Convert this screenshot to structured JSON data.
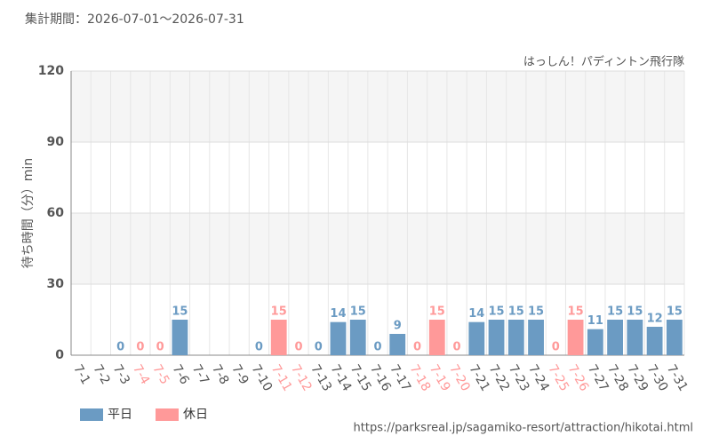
{
  "chart_data": {
    "type": "bar",
    "title": "集計期間：2026-07-01～2026-07-31",
    "subtitle": "はっしん！パディントン飛行隊",
    "y_label": "待ち時間（分）min",
    "source": "https://parksreal.jp/sagamiko-resort/attraction/hikotai.html",
    "categories": [
      "7-1",
      "7-2",
      "7-3",
      "7-4",
      "7-5",
      "7-6",
      "7-7",
      "7-8",
      "7-9",
      "7-10",
      "7-11",
      "7-12",
      "7-13",
      "7-14",
      "7-15",
      "7-16",
      "7-17",
      "7-18",
      "7-19",
      "7-20",
      "7-21",
      "7-22",
      "7-23",
      "7-24",
      "7-25",
      "7-26",
      "7-27",
      "7-28",
      "7-29",
      "7-30",
      "7-31"
    ],
    "series": [
      {
        "name": "平日",
        "color": "#6b9bc3",
        "values": [
          null,
          null,
          0,
          null,
          null,
          15,
          null,
          null,
          null,
          0,
          null,
          null,
          0,
          14,
          15,
          0,
          9,
          null,
          null,
          null,
          14,
          15,
          15,
          15,
          null,
          null,
          11,
          15,
          15,
          12,
          15
        ]
      },
      {
        "name": "休日",
        "color": "#ff9999",
        "values": [
          null,
          null,
          null,
          0,
          0,
          null,
          null,
          null,
          null,
          null,
          15,
          0,
          null,
          null,
          null,
          null,
          null,
          0,
          15,
          0,
          null,
          null,
          null,
          null,
          0,
          15,
          null,
          null,
          null,
          null,
          null
        ]
      }
    ],
    "ylim": [
      0,
      120
    ],
    "yticks": [
      0,
      30,
      60,
      90,
      120
    ],
    "grid": true,
    "legend": "bottom-left"
  }
}
